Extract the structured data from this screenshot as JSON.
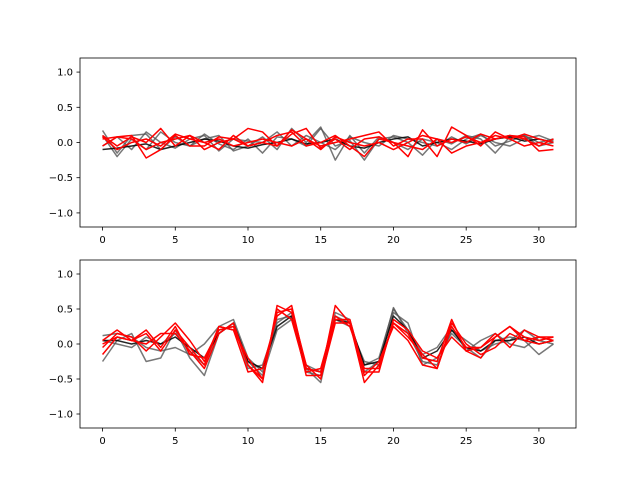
{
  "chart_data": [
    {
      "type": "line",
      "title": "",
      "xlabel": "",
      "ylabel": "",
      "xlim": [
        -1.55,
        32.55
      ],
      "ylim": [
        -1.2,
        1.2
      ],
      "xticks": [
        0,
        5,
        10,
        15,
        20,
        25,
        30
      ],
      "yticks": [
        -1.0,
        -0.5,
        0.0,
        0.5,
        1.0
      ],
      "xtick_labels": [
        "0",
        "5",
        "10",
        "15",
        "20",
        "25",
        "30"
      ],
      "ytick_labels": [
        "−1.0",
        "−0.5",
        "0.0",
        "0.5",
        "1.0"
      ],
      "grid": false,
      "series": [
        {
          "color": "#555555",
          "values": [
            0.17,
            -0.15,
            0.1,
            0.12,
            -0.1,
            0.08,
            -0.05,
            0.12,
            -0.02,
            -0.1,
            0.05,
            -0.15,
            0.08,
            0.05,
            -0.05,
            0.2,
            -0.05,
            0.03,
            -0.25,
            0.05,
            0.08,
            0.0,
            -0.18,
            0.05,
            -0.02,
            0.1,
            0.05,
            -0.15,
            0.08,
            0.1,
            0.0,
            0.05
          ]
        },
        {
          "color": "#555555",
          "values": [
            -0.05,
            0.08,
            -0.1,
            0.15,
            0.0,
            -0.08,
            0.05,
            0.1,
            -0.12,
            0.05,
            0.02,
            0.0,
            0.15,
            -0.05,
            0.1,
            0.0,
            -0.1,
            0.08,
            0.0,
            -0.05,
            0.1,
            0.05,
            0.0,
            -0.05,
            0.08,
            -0.02,
            0.1,
            0.0,
            -0.05,
            0.05,
            0.1,
            0.02
          ]
        },
        {
          "color": "#555555",
          "values": [
            0.1,
            -0.2,
            0.05,
            -0.1,
            0.15,
            0.0,
            -0.05,
            0.05,
            0.1,
            -0.12,
            -0.05,
            0.08,
            -0.1,
            0.2,
            0.0,
            0.22,
            -0.25,
            0.1,
            -0.15,
            0.08,
            0.0,
            -0.1,
            0.05,
            0.0,
            -0.1,
            0.05,
            0.12,
            -0.05,
            0.02,
            0.1,
            -0.05,
            0.0
          ]
        },
        {
          "color": "#000000",
          "values": [
            -0.1,
            -0.08,
            -0.05,
            -0.02,
            -0.1,
            -0.05,
            0.0,
            0.05,
            0.02,
            -0.05,
            -0.08,
            -0.03,
            0.0,
            0.05,
            -0.02,
            0.0,
            0.05,
            -0.05,
            -0.08,
            0.0,
            0.05,
            0.08,
            -0.05,
            0.0,
            0.05,
            0.02,
            -0.02,
            0.05,
            0.08,
            0.02,
            0.05,
            0.0
          ]
        },
        {
          "color": "#ff0000",
          "values": [
            0.05,
            0.08,
            0.1,
            -0.22,
            -0.1,
            0.1,
            -0.05,
            -0.05,
            0.08,
            0.05,
            0.2,
            0.15,
            -0.05,
            0.18,
            0.05,
            -0.05,
            0.0,
            0.05,
            0.1,
            0.15,
            -0.05,
            0.05,
            0.05,
            -0.2,
            0.22,
            0.1,
            -0.05,
            0.15,
            0.05,
            0.12,
            0.05,
            0.0
          ]
        },
        {
          "color": "#ff0000",
          "values": [
            0.1,
            -0.05,
            0.08,
            0.0,
            0.2,
            -0.05,
            0.1,
            0.0,
            -0.1,
            0.1,
            -0.05,
            0.0,
            0.1,
            0.15,
            -0.05,
            0.0,
            0.1,
            -0.05,
            -0.2,
            0.05,
            0.0,
            -0.2,
            0.18,
            -0.05,
            0.05,
            0.0,
            0.12,
            0.05,
            0.1,
            0.05,
            -0.05,
            0.05
          ]
        },
        {
          "color": "#ff0000",
          "values": [
            -0.05,
            0.08,
            0.05,
            -0.1,
            0.0,
            0.05,
            0.1,
            -0.1,
            0.0,
            0.05,
            -0.05,
            0.0,
            -0.05,
            0.12,
            0.2,
            -0.08,
            0.05,
            -0.1,
            0.05,
            0.08,
            0.0,
            -0.05,
            -0.1,
            0.05,
            0.0,
            0.08,
            0.0,
            0.05,
            0.1,
            0.08,
            -0.12,
            -0.1
          ]
        },
        {
          "color": "#ff0000",
          "values": [
            0.08,
            -0.1,
            0.0,
            0.05,
            -0.05,
            0.12,
            0.05,
            0.0,
            0.05,
            -0.05,
            0.0,
            0.05,
            0.0,
            -0.05,
            0.05,
            -0.1,
            0.08,
            0.0,
            -0.05,
            0.0,
            -0.1,
            0.0,
            0.1,
            0.05,
            -0.15,
            -0.05,
            0.0,
            0.1,
            0.05,
            -0.05,
            0.0,
            -0.05
          ]
        }
      ]
    },
    {
      "type": "line",
      "title": "",
      "xlabel": "",
      "ylabel": "",
      "xlim": [
        -1.55,
        32.55
      ],
      "ylim": [
        -1.2,
        1.2
      ],
      "xticks": [
        0,
        5,
        10,
        15,
        20,
        25,
        30
      ],
      "yticks": [
        -1.0,
        -0.5,
        0.0,
        0.5,
        1.0
      ],
      "xtick_labels": [
        "0",
        "5",
        "10",
        "15",
        "20",
        "25",
        "30"
      ],
      "ytick_labels": [
        "−1.0",
        "−0.5",
        "0.0",
        "0.5",
        "1.0"
      ],
      "grid": false,
      "series": [
        {
          "color": "#555555",
          "values": [
            0.12,
            0.15,
            0.1,
            -0.05,
            -0.1,
            -0.05,
            -0.15,
            0.0,
            0.25,
            0.35,
            -0.2,
            -0.4,
            0.35,
            0.4,
            -0.35,
            -0.55,
            0.4,
            0.3,
            -0.3,
            -0.2,
            0.5,
            0.2,
            -0.15,
            -0.05,
            0.25,
            -0.1,
            0.05,
            0.15,
            0.0,
            -0.05,
            0.1,
            0.05
          ]
        },
        {
          "color": "#555555",
          "values": [
            -0.25,
            0.05,
            0.15,
            -0.25,
            -0.2,
            0.2,
            -0.2,
            -0.45,
            0.15,
            0.3,
            -0.35,
            -0.3,
            0.3,
            0.45,
            -0.4,
            -0.45,
            0.35,
            0.25,
            -0.25,
            -0.3,
            0.45,
            0.3,
            -0.3,
            -0.2,
            0.15,
            -0.05,
            -0.2,
            0.05,
            0.1,
            0.05,
            -0.15,
            0.0
          ]
        },
        {
          "color": "#555555",
          "values": [
            0.05,
            0.0,
            -0.05,
            0.1,
            0.0,
            0.15,
            -0.1,
            -0.3,
            0.2,
            0.25,
            -0.25,
            -0.45,
            0.2,
            0.35,
            -0.3,
            -0.4,
            0.45,
            0.35,
            -0.4,
            -0.25,
            0.52,
            0.15,
            -0.25,
            -0.3,
            0.2,
            0.05,
            -0.1,
            0.0,
            0.05,
            0.2,
            0.05,
            0.0
          ]
        },
        {
          "color": "#000000",
          "values": [
            0.05,
            0.05,
            0.0,
            0.05,
            0.0,
            0.1,
            -0.05,
            -0.2,
            0.15,
            0.3,
            -0.25,
            -0.35,
            0.25,
            0.4,
            -0.35,
            -0.4,
            0.35,
            0.3,
            -0.3,
            -0.25,
            0.4,
            0.2,
            -0.2,
            -0.1,
            0.2,
            -0.05,
            -0.1,
            0.05,
            0.05,
            0.1,
            0.0,
            0.05
          ]
        },
        {
          "color": "#ff0000",
          "values": [
            0.0,
            0.1,
            0.05,
            0.2,
            -0.05,
            0.25,
            -0.15,
            -0.2,
            0.2,
            0.25,
            -0.3,
            -0.55,
            0.55,
            0.45,
            -0.45,
            -0.45,
            0.55,
            0.3,
            -0.55,
            -0.3,
            0.3,
            0.15,
            -0.2,
            -0.25,
            0.35,
            -0.1,
            -0.05,
            0.15,
            -0.05,
            0.2,
            0.1,
            0.05
          ]
        },
        {
          "color": "#ff0000",
          "values": [
            -0.05,
            0.15,
            0.1,
            -0.1,
            0.1,
            0.3,
            0.05,
            -0.25,
            0.25,
            0.2,
            -0.2,
            -0.5,
            0.45,
            0.5,
            -0.3,
            -0.5,
            0.3,
            0.3,
            -0.45,
            -0.25,
            0.25,
            0.05,
            -0.3,
            -0.35,
            0.25,
            -0.05,
            -0.05,
            0.1,
            0.25,
            0.1,
            0.05,
            0.1
          ]
        },
        {
          "color": "#ff0000",
          "values": [
            0.05,
            0.2,
            0.05,
            0.15,
            -0.1,
            0.2,
            -0.05,
            -0.3,
            0.25,
            0.2,
            -0.4,
            -0.35,
            0.4,
            0.55,
            -0.35,
            -0.4,
            0.35,
            0.35,
            -0.4,
            -0.4,
            0.35,
            0.2,
            -0.1,
            -0.2,
            0.1,
            -0.1,
            -0.2,
            0.1,
            0.25,
            0.05,
            0.0,
            0.05
          ]
        },
        {
          "color": "#ff0000",
          "values": [
            -0.15,
            0.1,
            0.05,
            0.0,
            0.15,
            0.15,
            -0.1,
            -0.35,
            0.15,
            0.3,
            -0.3,
            -0.5,
            0.5,
            0.35,
            -0.4,
            -0.35,
            0.4,
            0.25,
            -0.35,
            -0.35,
            0.3,
            0.1,
            -0.15,
            -0.35,
            0.3,
            0.0,
            -0.15,
            -0.05,
            0.15,
            0.05,
            0.1,
            0.1
          ]
        }
      ]
    }
  ]
}
